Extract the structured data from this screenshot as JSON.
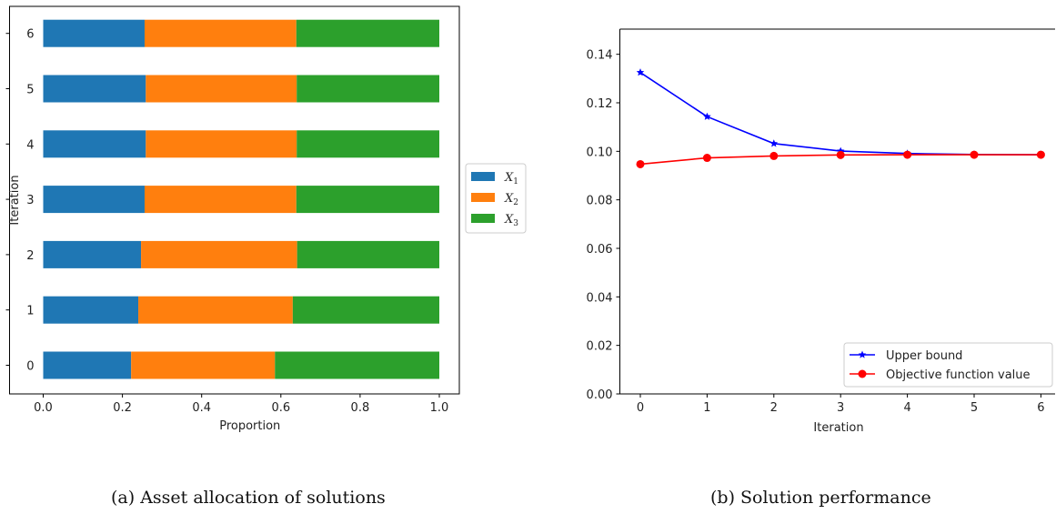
{
  "chart_data": [
    {
      "type": "bar",
      "orientation": "horizontal",
      "stacked": true,
      "categories": [
        "0",
        "1",
        "2",
        "3",
        "4",
        "5",
        "6"
      ],
      "series": [
        {
          "name": "X1",
          "subscript_name": {
            "base": "X",
            "sub": "1"
          },
          "color": "#1f77b4",
          "values": [
            0.222,
            0.24,
            0.247,
            0.256,
            0.259,
            0.259,
            0.256
          ]
        },
        {
          "name": "X2",
          "subscript_name": {
            "base": "X",
            "sub": "2"
          },
          "color": "#ff7f0e",
          "values": [
            0.363,
            0.39,
            0.394,
            0.383,
            0.381,
            0.381,
            0.383
          ]
        },
        {
          "name": "X3",
          "subscript_name": {
            "base": "X",
            "sub": "3"
          },
          "color": "#2ca02c",
          "values": [
            0.415,
            0.37,
            0.359,
            0.361,
            0.36,
            0.36,
            0.361
          ]
        }
      ],
      "xlabel": "Proportion",
      "ylabel": "Iteration",
      "xlim": [
        -0.05,
        1.05
      ],
      "xticks": [
        "0.0",
        "0.2",
        "0.4",
        "0.6",
        "0.8",
        "1.0"
      ],
      "grid": false,
      "legend_placement": "outside right center"
    },
    {
      "type": "line",
      "x": [
        0,
        1,
        2,
        3,
        4,
        5,
        6
      ],
      "series": [
        {
          "name": "Upper bound",
          "color": "#0000ff",
          "marker": "star",
          "values": [
            0.1325,
            0.1143,
            0.1032,
            0.1001,
            0.0991,
            0.0987,
            0.0986
          ]
        },
        {
          "name": "Objective function value",
          "color": "#ff0000",
          "marker": "circle",
          "values": [
            0.0947,
            0.0973,
            0.0981,
            0.0985,
            0.0986,
            0.0986,
            0.0986
          ]
        }
      ],
      "xlabel": "Iteration",
      "ylabel": "",
      "ylim": [
        0,
        0.15
      ],
      "xticks": [
        "0",
        "1",
        "2",
        "3",
        "4",
        "5",
        "6"
      ],
      "yticks": [
        "0.00",
        "0.02",
        "0.04",
        "0.06",
        "0.08",
        "0.10",
        "0.12",
        "0.14"
      ],
      "grid": false,
      "legend_placement": "lower right"
    }
  ],
  "captions": {
    "a": "(a)  Asset allocation of solutions",
    "b": "(b)  Solution performance"
  }
}
